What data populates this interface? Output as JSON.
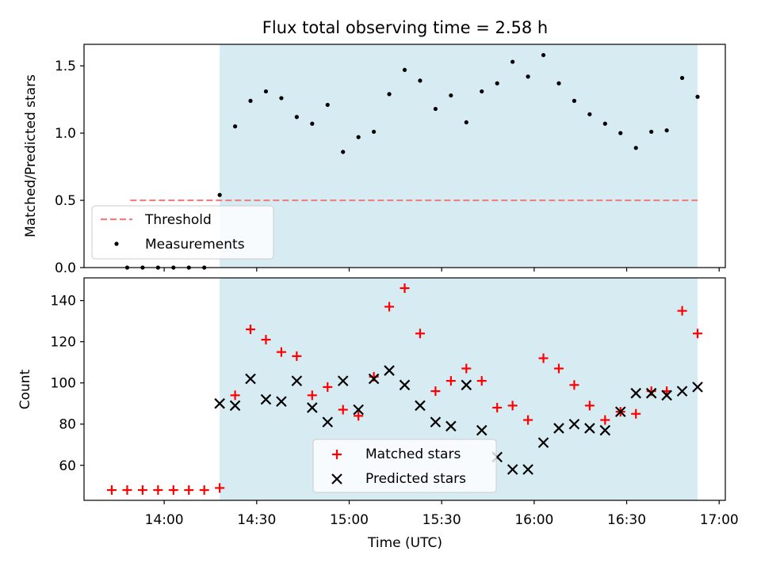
{
  "figure": {
    "title": "Flux total observing time = 2.58 h"
  },
  "colors": {
    "shade": "#add8e6",
    "threshold": "#f08080",
    "measurements": "#000000",
    "matched": "#ff0000",
    "predicted": "#000000"
  },
  "chart_data": [
    {
      "type": "scatter",
      "name": "ratio-panel",
      "xlabel": "",
      "ylabel": "Matched/Predicted stars",
      "ylim": [
        0,
        1.66
      ],
      "yticks": [
        0.0,
        0.5,
        1.0,
        1.5
      ],
      "ytick_labels": [
        "0.0",
        "0.5",
        "1.0",
        "1.5"
      ],
      "shaded_region": {
        "x_start": "14:18",
        "x_end": "16:53"
      },
      "threshold": {
        "y": 0.5,
        "x_start": "13:49",
        "x_end": "16:53",
        "style": "dashed"
      },
      "legend": {
        "position": "lower-left",
        "entries": [
          "Threshold",
          "Measurements"
        ]
      },
      "series": [
        {
          "name": "Measurements",
          "marker": "dot",
          "x": [
            "13:48",
            "13:53",
            "13:58",
            "14:03",
            "14:08",
            "14:13",
            "14:18",
            "14:23",
            "14:28",
            "14:33",
            "14:38",
            "14:43",
            "14:48",
            "14:53",
            "14:58",
            "15:03",
            "15:08",
            "15:13",
            "15:18",
            "15:23",
            "15:28",
            "15:33",
            "15:38",
            "15:43",
            "15:48",
            "15:53",
            "15:58",
            "16:03",
            "16:08",
            "16:13",
            "16:18",
            "16:23",
            "16:28",
            "16:33",
            "16:38",
            "16:43",
            "16:48",
            "16:53"
          ],
          "y": [
            0.0,
            0.0,
            0.0,
            0.0,
            0.0,
            0.0,
            0.54,
            1.05,
            1.24,
            1.31,
            1.26,
            1.12,
            1.07,
            1.21,
            0.86,
            0.97,
            1.01,
            1.29,
            1.47,
            1.39,
            1.18,
            1.28,
            1.08,
            1.31,
            1.37,
            1.53,
            1.42,
            1.58,
            1.37,
            1.24,
            1.14,
            1.07,
            1.0,
            0.89,
            1.01,
            1.02,
            1.41,
            1.27
          ]
        }
      ]
    },
    {
      "type": "scatter",
      "name": "count-panel",
      "xlabel": "Time (UTC)",
      "ylabel": "Count",
      "xlim": [
        "13:34",
        "17:02"
      ],
      "xticks": [
        "14:00",
        "14:30",
        "15:00",
        "15:30",
        "16:00",
        "16:30",
        "17:00"
      ],
      "ylim": [
        43,
        151
      ],
      "yticks": [
        60,
        80,
        100,
        120,
        140
      ],
      "ytick_labels": [
        "60",
        "80",
        "100",
        "120",
        "140"
      ],
      "shaded_region": {
        "x_start": "14:18",
        "x_end": "16:53"
      },
      "legend": {
        "position": "lower-center",
        "entries": [
          "Matched stars",
          "Predicted stars"
        ]
      },
      "series": [
        {
          "name": "Matched stars",
          "marker": "plus",
          "x": [
            "13:43",
            "13:48",
            "13:53",
            "13:58",
            "14:03",
            "14:08",
            "14:13",
            "14:18",
            "14:23",
            "14:28",
            "14:33",
            "14:38",
            "14:43",
            "14:48",
            "14:53",
            "14:58",
            "15:03",
            "15:08",
            "15:13",
            "15:18",
            "15:23",
            "15:28",
            "15:33",
            "15:38",
            "15:43",
            "15:48",
            "15:53",
            "15:58",
            "16:03",
            "16:08",
            "16:13",
            "16:18",
            "16:23",
            "16:28",
            "16:33",
            "16:38",
            "16:43",
            "16:48",
            "16:53"
          ],
          "y": [
            48,
            48,
            48,
            48,
            48,
            48,
            48,
            49,
            94,
            126,
            121,
            115,
            113,
            94,
            98,
            87,
            84,
            103,
            137,
            146,
            124,
            96,
            101,
            107,
            101,
            88,
            89,
            82,
            112,
            107,
            99,
            89,
            82,
            86,
            85,
            96,
            96,
            135,
            124
          ]
        },
        {
          "name": "Predicted stars",
          "marker": "x",
          "x": [
            "14:18",
            "14:23",
            "14:28",
            "14:33",
            "14:38",
            "14:43",
            "14:48",
            "14:53",
            "14:58",
            "15:03",
            "15:08",
            "15:13",
            "15:18",
            "15:23",
            "15:28",
            "15:33",
            "15:38",
            "15:43",
            "15:48",
            "15:53",
            "15:58",
            "16:03",
            "16:08",
            "16:13",
            "16:18",
            "16:23",
            "16:28",
            "16:33",
            "16:38",
            "16:43",
            "16:48",
            "16:53"
          ],
          "y": [
            90,
            89,
            102,
            92,
            91,
            101,
            88,
            81,
            101,
            87,
            102,
            106,
            99,
            89,
            81,
            79,
            99,
            77,
            64,
            58,
            58,
            71,
            78,
            80,
            78,
            77,
            86,
            95,
            95,
            94,
            96,
            98
          ]
        }
      ]
    }
  ]
}
